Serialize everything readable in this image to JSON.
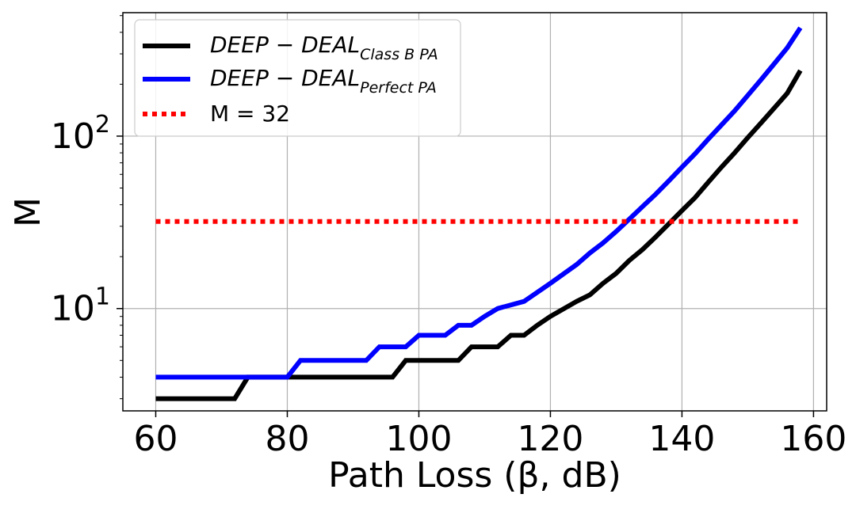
{
  "chart_data": {
    "type": "line",
    "xlabel": "Path Loss (β, dB)",
    "ylabel": "M",
    "xlim": [
      55,
      162
    ],
    "ylim": [
      2.55,
      520
    ],
    "yscale": "log",
    "grid": true,
    "legend_position": "upper-left",
    "x_ticks": [
      60,
      80,
      100,
      120,
      140,
      160
    ],
    "y_ticks": [
      {
        "value": 10,
        "base": "10",
        "exp": "1"
      },
      {
        "value": 100,
        "base": "10",
        "exp": "2"
      }
    ],
    "series": [
      {
        "name": "DEEP − DEAL",
        "subscript": "Class B PA",
        "color": "#000000",
        "style": "solid",
        "points": [
          [
            60,
            3
          ],
          [
            72,
            3
          ],
          [
            74,
            4
          ],
          [
            96,
            4
          ],
          [
            98,
            5
          ],
          [
            106,
            5
          ],
          [
            108,
            6
          ],
          [
            112,
            6
          ],
          [
            114,
            7
          ],
          [
            116,
            7
          ],
          [
            118,
            8
          ],
          [
            120,
            9
          ],
          [
            124,
            11
          ],
          [
            126,
            12
          ],
          [
            128,
            14
          ],
          [
            130,
            16
          ],
          [
            132,
            19
          ],
          [
            134,
            22
          ],
          [
            136,
            26
          ],
          [
            138,
            31
          ],
          [
            140,
            37
          ],
          [
            142,
            44
          ],
          [
            144,
            54
          ],
          [
            146,
            66
          ],
          [
            148,
            80
          ],
          [
            150,
            98
          ],
          [
            152,
            119
          ],
          [
            154,
            145
          ],
          [
            156,
            177
          ],
          [
            158,
            240
          ]
        ]
      },
      {
        "name": "DEEP − DEAL",
        "subscript": "Perfect PA",
        "color": "#0000ff",
        "style": "solid",
        "points": [
          [
            60,
            4
          ],
          [
            80,
            4
          ],
          [
            82,
            5
          ],
          [
            92,
            5
          ],
          [
            94,
            6
          ],
          [
            98,
            6
          ],
          [
            100,
            7
          ],
          [
            104,
            7
          ],
          [
            106,
            8
          ],
          [
            108,
            8
          ],
          [
            110,
            9
          ],
          [
            112,
            10
          ],
          [
            116,
            11
          ],
          [
            120,
            14
          ],
          [
            124,
            18
          ],
          [
            126,
            21
          ],
          [
            128,
            24
          ],
          [
            130,
            28
          ],
          [
            132,
            33
          ],
          [
            134,
            39
          ],
          [
            136,
            46
          ],
          [
            138,
            55
          ],
          [
            140,
            66
          ],
          [
            142,
            79
          ],
          [
            144,
            96
          ],
          [
            146,
            116
          ],
          [
            148,
            140
          ],
          [
            150,
            172
          ],
          [
            152,
            212
          ],
          [
            154,
            262
          ],
          [
            156,
            325
          ],
          [
            158,
            425
          ]
        ]
      },
      {
        "name": "M = 32",
        "color": "#ff0000",
        "style": "dotted",
        "points": [
          [
            60,
            32
          ],
          [
            158,
            32
          ]
        ]
      }
    ]
  }
}
